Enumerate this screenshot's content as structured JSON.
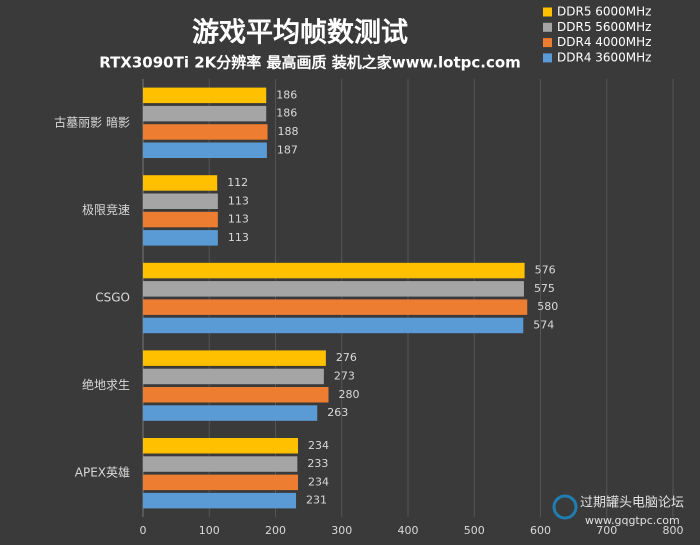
{
  "chart_data": {
    "type": "hbar",
    "title": "游戏平均帧数测试",
    "subtitle": "RTX3090Ti 2K分辨率 最高画质 装机之家www.lotpc.com",
    "categories": [
      "古墓丽影 暗影",
      "极限竞速",
      "CSGO",
      "绝地求生",
      "APEX英雄"
    ],
    "series": [
      {
        "name": "DDR5 6000MHz",
        "color": "#ffc000",
        "values": [
          186,
          112,
          576,
          276,
          234
        ]
      },
      {
        "name": "DDR5 5600MHz",
        "color": "#a5a5a5",
        "values": [
          186,
          113,
          575,
          273,
          233
        ]
      },
      {
        "name": "DDR4 4000MHz",
        "color": "#ed7d31",
        "values": [
          188,
          113,
          580,
          280,
          234
        ]
      },
      {
        "name": "DDR4 3600MHz",
        "color": "#5b9bd5",
        "values": [
          187,
          113,
          574,
          263,
          231
        ]
      }
    ],
    "xlim": [
      0,
      800
    ],
    "xticks": [
      0,
      100,
      200,
      300,
      400,
      500,
      600,
      700,
      800
    ],
    "grid": true,
    "legend": "top-right",
    "watermark": [
      "过期罐头电脑论坛",
      "www.gqgtpc.com"
    ]
  }
}
